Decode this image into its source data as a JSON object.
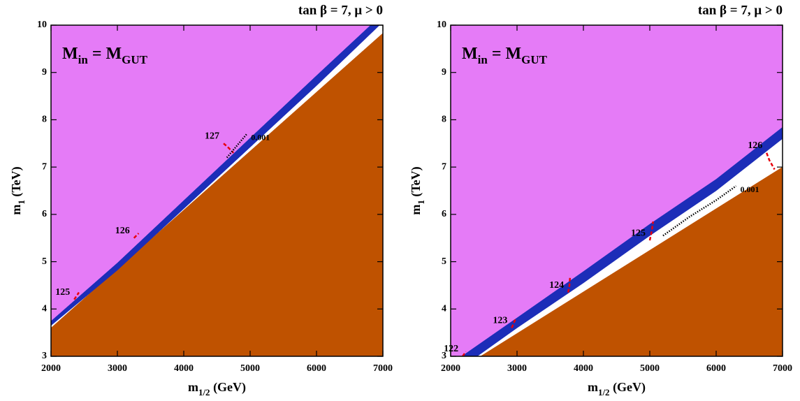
{
  "chart_data": [
    {
      "type": "contour",
      "title": "tan β = 7, μ > 0",
      "annotation": [
        {
          "text": "M"
        },
        {
          "sub": "in"
        },
        {
          "text": " = M"
        },
        {
          "sub": "GUT"
        }
      ],
      "xlabel": [
        {
          "text": "m"
        },
        {
          "sub": "1/2"
        },
        {
          "text": " (GeV)"
        }
      ],
      "ylabel": [
        {
          "text": "m"
        },
        {
          "sub": "1"
        },
        {
          "text": " (TeV)"
        }
      ],
      "xlim": [
        2000,
        7000
      ],
      "xticks": [
        2000,
        3000,
        4000,
        5000,
        6000,
        7000
      ],
      "ylim": [
        3,
        10
      ],
      "yticks": [
        3,
        4,
        5,
        6,
        7,
        8,
        9,
        10
      ],
      "regions": [
        {
          "color": "#bf5200",
          "x": [
            2000,
            7000,
            7000,
            2000
          ],
          "y": [
            3.6,
            9.83,
            3,
            3
          ]
        },
        {
          "color": "#1c2db8",
          "x": [
            2000,
            3000,
            4000,
            5000,
            6000,
            6810,
            6950,
            6000,
            5000,
            4000,
            3000,
            2000
          ],
          "y": [
            3.75,
            4.98,
            6.3,
            7.62,
            8.94,
            10,
            10,
            8.72,
            7.42,
            6.12,
            4.82,
            3.65
          ]
        },
        {
          "color": "#e57bf7",
          "x": [
            2000,
            2000,
            3000,
            4000,
            5000,
            6000,
            6810
          ],
          "y": [
            10,
            3.75,
            4.98,
            6.3,
            7.62,
            8.94,
            10
          ]
        }
      ],
      "contours": [
        {
          "value": 125,
          "color": "#e8000b",
          "style": "dashed",
          "x": [
            2350,
            2420
          ],
          "y": [
            4.2,
            4.35
          ]
        },
        {
          "value": 126,
          "color": "#e8000b",
          "style": "dashed",
          "x": [
            3250,
            3320
          ],
          "y": [
            5.5,
            5.6
          ]
        },
        {
          "value": 127,
          "color": "#e8000b",
          "style": "dashed",
          "x": [
            4600,
            4680,
            4750
          ],
          "y": [
            7.5,
            7.4,
            7.3
          ]
        },
        {
          "value": 0.001,
          "color": "#000000",
          "style": "dotted",
          "x": [
            4650,
            4800,
            4950
          ],
          "y": [
            7.2,
            7.45,
            7.7
          ]
        }
      ]
    },
    {
      "type": "contour",
      "title": "tan β = 7, μ > 0",
      "annotation": [
        {
          "text": "M"
        },
        {
          "sub": "in"
        },
        {
          "text": " = M"
        },
        {
          "sub": "GUT"
        }
      ],
      "xlabel": [
        {
          "text": "m"
        },
        {
          "sub": "1/2"
        },
        {
          "text": " (GeV)"
        }
      ],
      "ylabel": [
        {
          "text": "m"
        },
        {
          "sub": "1"
        },
        {
          "text": " (TeV)"
        }
      ],
      "xlim": [
        2000,
        7000
      ],
      "xticks": [
        2000,
        3000,
        4000,
        5000,
        6000,
        7000
      ],
      "ylim": [
        3,
        10
      ],
      "yticks": [
        3,
        4,
        5,
        6,
        7,
        8,
        9,
        10
      ],
      "regions": [
        {
          "color": "#bf5200",
          "x": [
            2450,
            7000,
            7000,
            2450
          ],
          "y": [
            3,
            7.0,
            3,
            3
          ]
        },
        {
          "color": "#1c2db8",
          "x": [
            2160,
            3000,
            4000,
            5000,
            6000,
            7000,
            7000,
            6000,
            5000,
            4000,
            3000,
            2400
          ],
          "y": [
            3.0,
            3.82,
            4.8,
            5.8,
            6.75,
            7.85,
            7.6,
            6.5,
            5.55,
            4.55,
            3.6,
            3.0
          ]
        },
        {
          "color": "#e57bf7",
          "x": [
            2000,
            2000,
            2160,
            3000,
            4000,
            5000,
            6000,
            7000,
            7000
          ],
          "y": [
            10,
            3.0,
            3.0,
            3.82,
            4.8,
            5.8,
            6.75,
            7.85,
            10
          ]
        }
      ],
      "contours": [
        {
          "value": 122,
          "color": "#e8000b",
          "style": "dashed",
          "x": [
            2180,
            2230
          ],
          "y": [
            3.0,
            3.1
          ]
        },
        {
          "value": 123,
          "color": "#e8000b",
          "style": "dashed",
          "x": [
            2920,
            2980
          ],
          "y": [
            3.6,
            3.8
          ]
        },
        {
          "value": 124,
          "color": "#e8000b",
          "style": "dashed",
          "x": [
            3770,
            3790,
            3800
          ],
          "y": [
            4.35,
            4.5,
            4.7
          ]
        },
        {
          "value": 125,
          "color": "#e8000b",
          "style": "dashed",
          "x": [
            5000,
            5030,
            5050
          ],
          "y": [
            5.45,
            5.65,
            5.85
          ]
        },
        {
          "value": 126,
          "color": "#e8000b",
          "style": "dashed",
          "x": [
            6760,
            6800,
            6880
          ],
          "y": [
            7.3,
            7.15,
            6.95
          ]
        },
        {
          "value": 0.001,
          "color": "#000000",
          "style": "dotted",
          "x": [
            5200,
            5600,
            6000,
            6300
          ],
          "y": [
            5.55,
            5.95,
            6.3,
            6.6
          ]
        }
      ]
    }
  ]
}
